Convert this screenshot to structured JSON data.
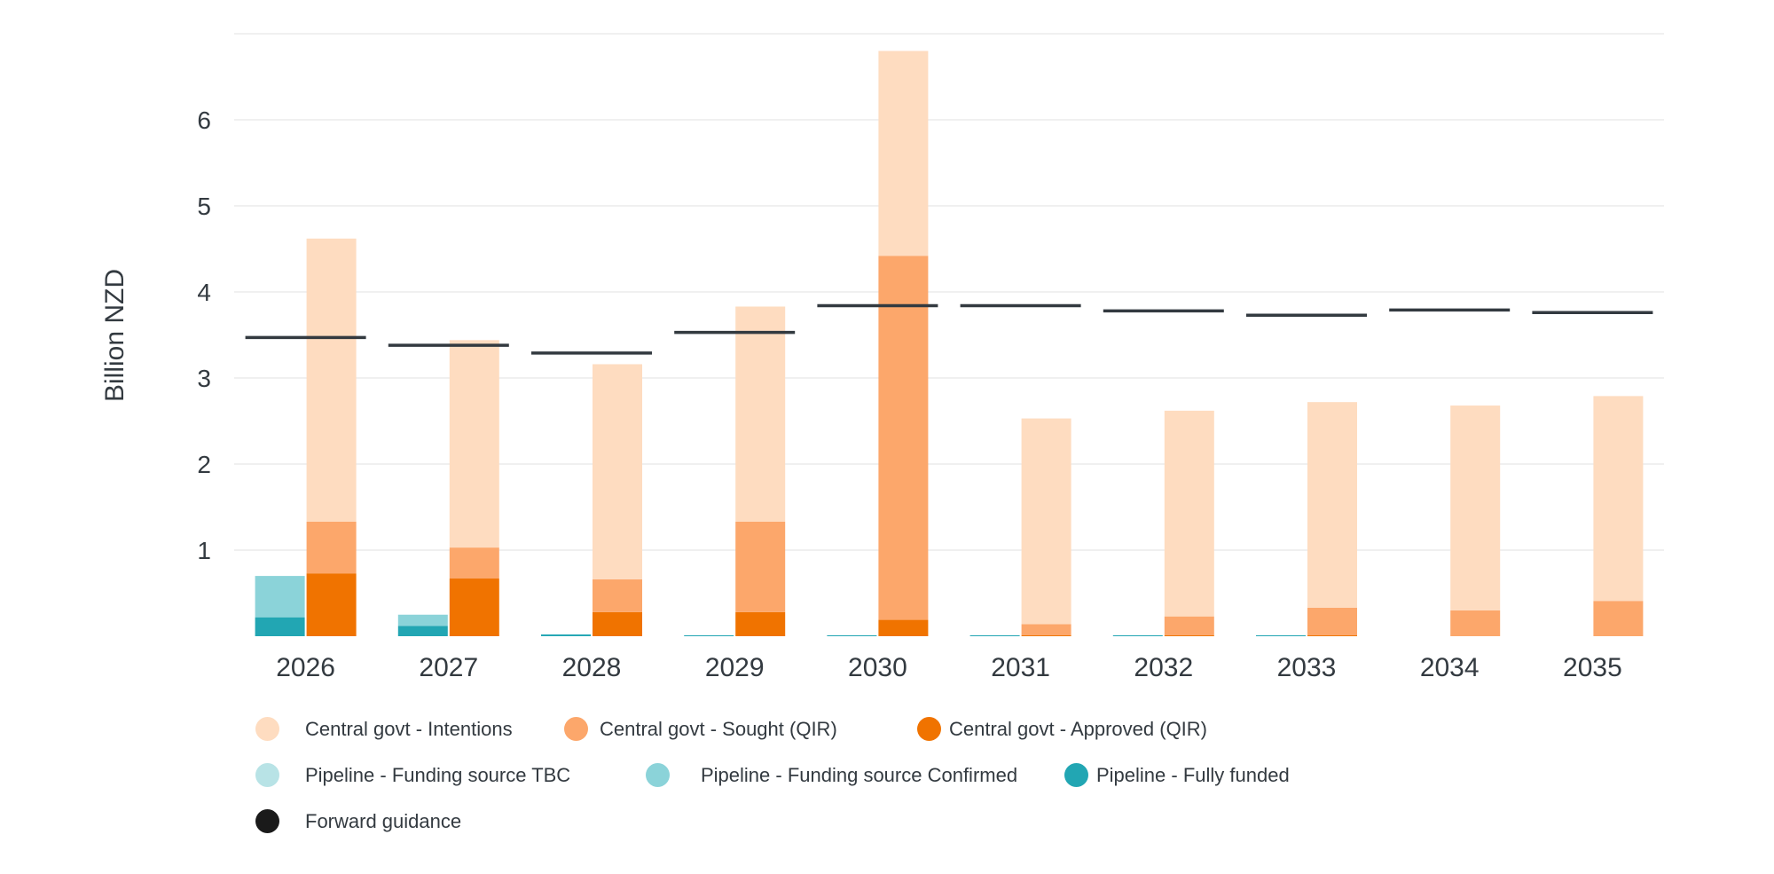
{
  "chart_data": {
    "type": "bar",
    "title": "",
    "xlabel": "",
    "ylabel": "Billion NZD",
    "ylim": [
      0,
      7
    ],
    "yticks": [
      1,
      2,
      3,
      4,
      5,
      6
    ],
    "categories": [
      "2026",
      "2027",
      "2028",
      "2029",
      "2030",
      "2031",
      "2032",
      "2033",
      "2034",
      "2035"
    ],
    "stack_groups": {
      "pipeline": {
        "series": [
          {
            "name": "Pipeline - Fully funded",
            "color": "#22a6b3",
            "values": [
              0.22,
              0.12,
              0.02,
              0.01,
              0.01,
              0.01,
              0.01,
              0.01,
              0.0,
              0.0
            ]
          },
          {
            "name": "Pipeline - Funding source Confirmed",
            "color": "#8bd3d9",
            "values": [
              0.48,
              0.13,
              0.0,
              0.0,
              0.0,
              0.0,
              0.0,
              0.0,
              0.0,
              0.0
            ]
          },
          {
            "name": "Pipeline - Funding source TBC",
            "color": "#b8e3e6",
            "values": [
              0.0,
              0.0,
              0.0,
              0.0,
              0.0,
              0.0,
              0.0,
              0.0,
              0.0,
              0.0
            ]
          }
        ]
      },
      "central": {
        "series": [
          {
            "name": "Central govt - Approved (QIR)",
            "color": "#f07300",
            "values": [
              0.73,
              0.67,
              0.28,
              0.28,
              0.19,
              0.01,
              0.01,
              0.01,
              0.0,
              0.0
            ]
          },
          {
            "name": "Central govt - Sought (QIR)",
            "color": "#fca76b",
            "values": [
              0.6,
              0.36,
              0.38,
              1.05,
              4.23,
              0.13,
              0.22,
              0.32,
              0.3,
              0.41
            ]
          },
          {
            "name": "Central govt - Intentions",
            "color": "#fedcc0",
            "values": [
              3.29,
              2.41,
              2.5,
              2.5,
              2.38,
              2.39,
              2.39,
              2.39,
              2.38,
              2.38
            ]
          }
        ]
      }
    },
    "forward_guidance": {
      "name": "Forward guidance",
      "color": "#333a40",
      "values": [
        3.47,
        3.38,
        3.29,
        3.53,
        3.84,
        3.84,
        3.78,
        3.73,
        3.79,
        3.76
      ]
    }
  },
  "legend": [
    {
      "label": "Central govt - Intentions",
      "color": "#fedcc0"
    },
    {
      "label": "Central govt - Sought (QIR)",
      "color": "#fca76b"
    },
    {
      "label": "Central govt - Approved (QIR)",
      "color": "#f07300"
    },
    {
      "label": "Pipeline - Funding source TBC",
      "color": "#b8e3e6"
    },
    {
      "label": "Pipeline - Funding source Confirmed",
      "color": "#8bd3d9"
    },
    {
      "label": "Pipeline - Fully funded",
      "color": "#22a6b3"
    },
    {
      "label": "Forward guidance",
      "color": "#1a1a1a"
    }
  ]
}
